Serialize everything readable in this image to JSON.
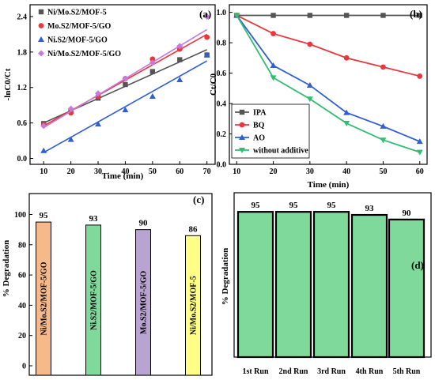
{
  "chart_data": [
    {
      "panel": "(a)",
      "type": "scatter",
      "xlabel": "Time (min)",
      "ylabel": "-lnC0/Ct",
      "x": [
        10,
        20,
        30,
        40,
        50,
        60,
        70
      ],
      "xlim": [
        5,
        73
      ],
      "ylim": [
        -0.1,
        2.6
      ],
      "xticks": [
        "10",
        "20",
        "30",
        "40",
        "50",
        "60",
        "70"
      ],
      "yticks": [
        "0.0",
        "0.6",
        "1.2",
        "1.8",
        "2.4"
      ],
      "legend_position": "top-left",
      "series": [
        {
          "name": "Ni/Mo.S2/MOF-5",
          "color": "#555555",
          "marker": "square",
          "values": [
            0.59,
            0.8,
            1.02,
            1.25,
            1.47,
            1.67,
            1.75
          ],
          "fit": [
            0.6,
            1.84
          ]
        },
        {
          "name": "Mo.S2/MOF-5/GO",
          "color": "#e8383d",
          "marker": "circle",
          "values": [
            0.57,
            0.77,
            1.05,
            1.35,
            1.68,
            1.85,
            2.05
          ],
          "fit": [
            0.55,
            2.1
          ]
        },
        {
          "name": "Ni.S2/MOF-5/GO",
          "color": "#2f5fd1",
          "marker": "triangle",
          "values": [
            0.13,
            0.32,
            0.58,
            0.82,
            1.05,
            1.33,
            1.75
          ],
          "fit": [
            0.1,
            1.65
          ]
        },
        {
          "name": "Ni/Mo.S2/MOF-5/GO",
          "color": "#c77ad9",
          "marker": "diamond",
          "values": [
            0.55,
            0.84,
            1.1,
            1.35,
            1.62,
            1.9,
            2.4
          ],
          "fit": [
            0.52,
            2.18
          ]
        }
      ]
    },
    {
      "panel": "(b)",
      "type": "line",
      "xlabel": "Time (min)",
      "ylabel": "Ct/C0",
      "x": [
        10,
        20,
        30,
        40,
        50,
        60
      ],
      "xlim": [
        8,
        62
      ],
      "ylim": [
        0,
        1.05
      ],
      "xticks": [
        "10",
        "20",
        "30",
        "40",
        "50",
        "60"
      ],
      "yticks": [
        "0.0",
        "0.2",
        "0.4",
        "0.6",
        "0.8",
        "1.0"
      ],
      "legend_position": "bottom-left",
      "series": [
        {
          "name": "IPA",
          "color": "#555555",
          "marker": "square",
          "values": [
            0.98,
            0.98,
            0.98,
            0.98,
            0.98,
            0.98
          ]
        },
        {
          "name": "BQ",
          "color": "#e8383d",
          "marker": "circle",
          "values": [
            0.98,
            0.86,
            0.79,
            0.7,
            0.64,
            0.58
          ]
        },
        {
          "name": "AO",
          "color": "#2f5fd1",
          "marker": "triangle",
          "values": [
            0.98,
            0.65,
            0.52,
            0.34,
            0.25,
            0.15
          ]
        },
        {
          "name": "without additive",
          "color": "#2fbf71",
          "marker": "triangle-down",
          "values": [
            0.98,
            0.57,
            0.43,
            0.27,
            0.16,
            0.08
          ]
        }
      ]
    },
    {
      "panel": "(c)",
      "type": "bar",
      "ylabel": "% Degradation",
      "ylim": [
        0,
        100
      ],
      "yticks": [
        "0",
        "20",
        "40",
        "60",
        "80",
        "100"
      ],
      "categories": [
        "Ni/Mo.S2/MOF-5/GO",
        "Ni.S2/MOF-5/GO",
        "Mo.S2/MOF-5/GO",
        "Ni/Mo.S2/MOF-5"
      ],
      "values": [
        95,
        93,
        90,
        86
      ],
      "colors": [
        "#f5b98a",
        "#7fd99a",
        "#b9a3d0",
        "#ffff88"
      ]
    },
    {
      "panel": "(d)",
      "type": "bar",
      "ylabel": "% Degradation",
      "ylim": [
        0,
        100
      ],
      "categories": [
        "1st Run",
        "2nd Run",
        "3rd Run",
        "4th Run",
        "5th Run"
      ],
      "values": [
        95,
        95,
        95,
        93,
        90
      ],
      "color": "#7fd99a"
    }
  ]
}
